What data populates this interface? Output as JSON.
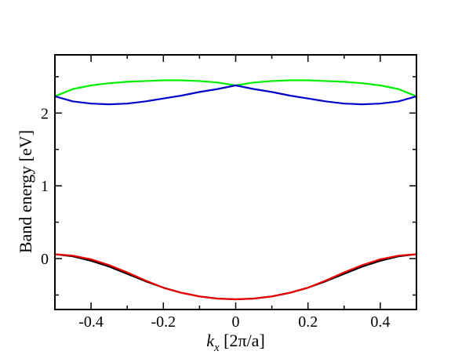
{
  "chart_data": {
    "type": "line",
    "xlabel_main": "k",
    "xlabel_sub": "x",
    "xlabel_unit": " [2π/a]",
    "ylabel": "Band energy [eV]",
    "xlim": [
      -0.5,
      0.5
    ],
    "ylim": [
      -0.7,
      2.8
    ],
    "grid": false,
    "legend": "none",
    "xticks": [
      {
        "value": -0.4,
        "label": "-0.4"
      },
      {
        "value": -0.2,
        "label": "-0.2"
      },
      {
        "value": 0,
        "label": "0"
      },
      {
        "value": 0.2,
        "label": "0.2"
      },
      {
        "value": 0.4,
        "label": "0.4"
      }
    ],
    "yticks": [
      {
        "value": 0,
        "label": "0"
      },
      {
        "value": 1,
        "label": "1"
      },
      {
        "value": 2,
        "label": "2"
      }
    ],
    "x": [
      -0.5,
      -0.45,
      -0.4,
      -0.35,
      -0.3,
      -0.25,
      -0.2,
      -0.15,
      -0.1,
      -0.05,
      0,
      0.05,
      0.1,
      0.15,
      0.2,
      0.25,
      0.3,
      0.35,
      0.4,
      0.45,
      0.5
    ],
    "series": [
      {
        "color": "#00ee00",
        "values": [
          2.23,
          2.33,
          2.38,
          2.41,
          2.43,
          2.44,
          2.45,
          2.45,
          2.44,
          2.42,
          2.38,
          2.42,
          2.44,
          2.45,
          2.45,
          2.44,
          2.43,
          2.41,
          2.38,
          2.33,
          2.23
        ]
      },
      {
        "color": "#0000cc",
        "values": [
          2.23,
          2.16,
          2.13,
          2.12,
          2.13,
          2.16,
          2.2,
          2.24,
          2.29,
          2.33,
          2.38,
          2.33,
          2.29,
          2.24,
          2.2,
          2.16,
          2.13,
          2.12,
          2.13,
          2.16,
          2.23
        ]
      },
      {
        "color": "#000000",
        "values": [
          0.06,
          0.03,
          -0.03,
          -0.11,
          -0.21,
          -0.31,
          -0.4,
          -0.47,
          -0.52,
          -0.55,
          -0.56,
          -0.55,
          -0.52,
          -0.47,
          -0.4,
          -0.31,
          -0.21,
          -0.11,
          -0.03,
          0.03,
          0.06
        ]
      },
      {
        "color": "#ee0000",
        "values": [
          0.06,
          0.04,
          -0.01,
          -0.09,
          -0.19,
          -0.3,
          -0.4,
          -0.47,
          -0.52,
          -0.55,
          -0.56,
          -0.55,
          -0.52,
          -0.47,
          -0.4,
          -0.3,
          -0.19,
          -0.09,
          -0.01,
          0.04,
          0.06
        ]
      }
    ]
  }
}
